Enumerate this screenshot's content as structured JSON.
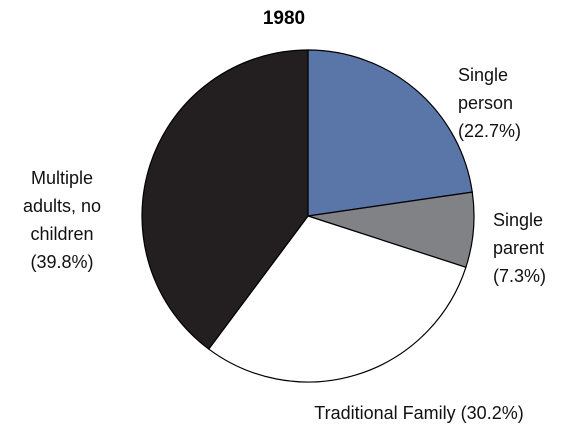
{
  "chart_data": {
    "type": "pie",
    "title": "1980",
    "categories": [
      "Single person",
      "Single parent",
      "Traditional Family",
      "Multiple adults, no children"
    ],
    "values": [
      22.7,
      7.3,
      30.2,
      39.8
    ],
    "value_labels": [
      "(22.7%)",
      "(7.3%)",
      "(30.2%)",
      "(39.8%)"
    ],
    "colors": [
      "#5a76a8",
      "#808285",
      "#ffffff",
      "#231f20"
    ]
  }
}
